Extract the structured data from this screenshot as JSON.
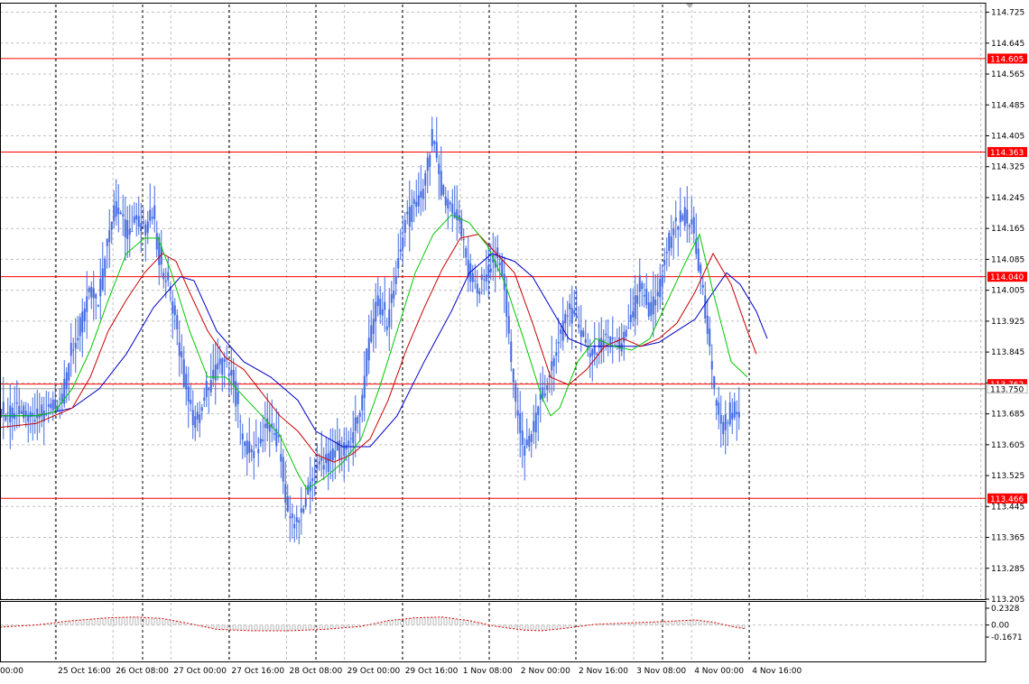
{
  "chart": {
    "price_ticks": [
      "114.725",
      "114.645",
      "114.565",
      "114.485",
      "114.405",
      "114.325",
      "114.245",
      "114.165",
      "114.085",
      "114.005",
      "113.925",
      "113.845",
      "113.765",
      "113.685",
      "113.605",
      "113.525",
      "113.445",
      "113.365",
      "113.285",
      "113.205"
    ],
    "time_labels": [
      "00:00",
      "25 Oct 16:00",
      "26 Oct 08:00",
      "27 Oct 00:00",
      "27 Oct 16:00",
      "28 Oct 08:00",
      "29 Oct 00:00",
      "29 Oct 16:00",
      "1 Nov 08:00",
      "2 Nov 00:00",
      "2 Nov 16:00",
      "3 Nov 08:00",
      "4 Nov 00:00",
      "4 Nov 16:00"
    ],
    "levels": [
      {
        "value": 114.605,
        "label": "114.605"
      },
      {
        "value": 114.363,
        "label": "114.363"
      },
      {
        "value": 114.04,
        "label": "114.040"
      },
      {
        "value": 113.762,
        "label": "113.762"
      },
      {
        "value": 113.466,
        "label": "113.466"
      }
    ],
    "current_price": {
      "value": 113.75,
      "label": "113.750"
    },
    "level_color": "#ff0000",
    "candle_color": "#4169e1",
    "ma_colors": {
      "fast": "#00c800",
      "mid": "#c80000",
      "slow": "#0000c8"
    },
    "osc_ticks": [
      "0.2328",
      "0.00",
      "-0.1671"
    ],
    "osc_range": [
      -0.1671,
      0.2328
    ]
  },
  "chart_data": {
    "type": "line",
    "price_range": [
      113.205,
      114.745
    ],
    "x_range": [
      0,
      1090
    ],
    "close": [
      [
        0,
        113.7
      ],
      [
        10,
        113.68
      ],
      [
        20,
        113.69
      ],
      [
        30,
        113.68
      ],
      [
        40,
        113.69
      ],
      [
        50,
        113.68
      ],
      [
        60,
        113.7
      ],
      [
        70,
        113.73
      ],
      [
        80,
        113.85
      ],
      [
        90,
        113.92
      ],
      [
        100,
        114.02
      ],
      [
        110,
        113.98
      ],
      [
        120,
        114.15
      ],
      [
        130,
        114.22
      ],
      [
        140,
        114.16
      ],
      [
        150,
        114.18
      ],
      [
        160,
        114.17
      ],
      [
        170,
        114.2
      ],
      [
        180,
        114.06
      ],
      [
        190,
        114.0
      ],
      [
        200,
        113.85
      ],
      [
        210,
        113.7
      ],
      [
        220,
        113.66
      ],
      [
        230,
        113.75
      ],
      [
        240,
        113.8
      ],
      [
        250,
        113.82
      ],
      [
        260,
        113.76
      ],
      [
        270,
        113.62
      ],
      [
        280,
        113.58
      ],
      [
        290,
        113.62
      ],
      [
        300,
        113.66
      ],
      [
        310,
        113.6
      ],
      [
        320,
        113.42
      ],
      [
        330,
        113.4
      ],
      [
        340,
        113.47
      ],
      [
        350,
        113.55
      ],
      [
        360,
        113.55
      ],
      [
        370,
        113.58
      ],
      [
        380,
        113.6
      ],
      [
        390,
        113.62
      ],
      [
        400,
        113.7
      ],
      [
        410,
        113.88
      ],
      [
        420,
        113.98
      ],
      [
        430,
        113.92
      ],
      [
        440,
        114.05
      ],
      [
        450,
        114.18
      ],
      [
        460,
        114.22
      ],
      [
        470,
        114.26
      ],
      [
        480,
        114.4
      ],
      [
        490,
        114.26
      ],
      [
        500,
        114.22
      ],
      [
        510,
        114.18
      ],
      [
        520,
        114.06
      ],
      [
        530,
        114.0
      ],
      [
        540,
        114.05
      ],
      [
        550,
        114.1
      ],
      [
        560,
        114.02
      ],
      [
        570,
        113.75
      ],
      [
        580,
        113.6
      ],
      [
        590,
        113.62
      ],
      [
        600,
        113.73
      ],
      [
        610,
        113.78
      ],
      [
        620,
        113.88
      ],
      [
        630,
        113.95
      ],
      [
        640,
        113.92
      ],
      [
        650,
        113.86
      ],
      [
        660,
        113.84
      ],
      [
        670,
        113.88
      ],
      [
        680,
        113.86
      ],
      [
        690,
        113.87
      ],
      [
        700,
        113.92
      ],
      [
        710,
        114.02
      ],
      [
        720,
        113.95
      ],
      [
        730,
        113.98
      ],
      [
        740,
        114.12
      ],
      [
        750,
        114.18
      ],
      [
        760,
        114.2
      ],
      [
        770,
        114.16
      ],
      [
        780,
        114.0
      ],
      [
        790,
        113.78
      ],
      [
        800,
        113.64
      ],
      [
        810,
        113.69
      ],
      [
        820,
        113.7
      ]
    ],
    "ma_fast": [
      [
        0,
        113.68
      ],
      [
        40,
        113.68
      ],
      [
        60,
        113.69
      ],
      [
        80,
        113.75
      ],
      [
        100,
        113.85
      ],
      [
        120,
        113.98
      ],
      [
        140,
        114.1
      ],
      [
        160,
        114.14
      ],
      [
        175,
        114.14
      ],
      [
        190,
        114.05
      ],
      [
        210,
        113.9
      ],
      [
        230,
        113.78
      ],
      [
        250,
        113.78
      ],
      [
        270,
        113.73
      ],
      [
        290,
        113.68
      ],
      [
        310,
        113.63
      ],
      [
        330,
        113.53
      ],
      [
        340,
        113.49
      ],
      [
        360,
        113.52
      ],
      [
        380,
        113.56
      ],
      [
        400,
        113.62
      ],
      [
        420,
        113.75
      ],
      [
        440,
        113.9
      ],
      [
        460,
        114.05
      ],
      [
        480,
        114.15
      ],
      [
        500,
        114.2
      ],
      [
        520,
        114.18
      ],
      [
        540,
        114.12
      ],
      [
        560,
        114.02
      ],
      [
        580,
        113.88
      ],
      [
        600,
        113.73
      ],
      [
        610,
        113.68
      ],
      [
        620,
        113.7
      ],
      [
        640,
        113.82
      ],
      [
        660,
        113.88
      ],
      [
        680,
        113.86
      ],
      [
        700,
        113.85
      ],
      [
        720,
        113.88
      ],
      [
        740,
        113.98
      ],
      [
        760,
        114.08
      ],
      [
        775,
        114.15
      ],
      [
        790,
        114.0
      ],
      [
        810,
        113.82
      ],
      [
        828,
        113.78
      ]
    ],
    "ma_mid": [
      [
        0,
        113.65
      ],
      [
        40,
        113.66
      ],
      [
        80,
        113.7
      ],
      [
        100,
        113.78
      ],
      [
        120,
        113.9
      ],
      [
        140,
        113.98
      ],
      [
        160,
        114.05
      ],
      [
        180,
        114.1
      ],
      [
        195,
        114.08
      ],
      [
        210,
        114.0
      ],
      [
        230,
        113.9
      ],
      [
        250,
        113.83
      ],
      [
        270,
        113.8
      ],
      [
        290,
        113.74
      ],
      [
        310,
        113.68
      ],
      [
        330,
        113.64
      ],
      [
        350,
        113.58
      ],
      [
        370,
        113.56
      ],
      [
        390,
        113.58
      ],
      [
        410,
        113.62
      ],
      [
        430,
        113.72
      ],
      [
        450,
        113.85
      ],
      [
        470,
        113.96
      ],
      [
        490,
        114.06
      ],
      [
        510,
        114.14
      ],
      [
        530,
        114.15
      ],
      [
        550,
        114.1
      ],
      [
        570,
        114.05
      ],
      [
        590,
        113.92
      ],
      [
        610,
        113.78
      ],
      [
        630,
        113.76
      ],
      [
        650,
        113.8
      ],
      [
        670,
        113.86
      ],
      [
        690,
        113.88
      ],
      [
        710,
        113.86
      ],
      [
        730,
        113.88
      ],
      [
        750,
        113.92
      ],
      [
        770,
        114.0
      ],
      [
        790,
        114.1
      ],
      [
        810,
        114.02
      ],
      [
        828,
        113.9
      ],
      [
        838,
        113.84
      ]
    ],
    "ma_slow": [
      [
        0,
        113.68
      ],
      [
        40,
        113.68
      ],
      [
        80,
        113.7
      ],
      [
        110,
        113.75
      ],
      [
        140,
        113.84
      ],
      [
        170,
        113.96
      ],
      [
        200,
        114.04
      ],
      [
        215,
        114.03
      ],
      [
        240,
        113.9
      ],
      [
        270,
        113.82
      ],
      [
        300,
        113.78
      ],
      [
        330,
        113.72
      ],
      [
        350,
        113.64
      ],
      [
        380,
        113.6
      ],
      [
        410,
        113.6
      ],
      [
        440,
        113.68
      ],
      [
        470,
        113.82
      ],
      [
        500,
        113.95
      ],
      [
        520,
        114.05
      ],
      [
        545,
        114.1
      ],
      [
        570,
        114.08
      ],
      [
        590,
        114.04
      ],
      [
        610,
        113.96
      ],
      [
        630,
        113.88
      ],
      [
        650,
        113.86
      ],
      [
        670,
        113.86
      ],
      [
        690,
        113.86
      ],
      [
        710,
        113.86
      ],
      [
        730,
        113.87
      ],
      [
        750,
        113.9
      ],
      [
        770,
        113.93
      ],
      [
        790,
        114.0
      ],
      [
        805,
        114.05
      ],
      [
        820,
        114.02
      ],
      [
        838,
        113.95
      ],
      [
        850,
        113.88
      ]
    ],
    "oscillator": [
      [
        0,
        -0.03
      ],
      [
        40,
        0.0
      ],
      [
        80,
        0.06
      ],
      [
        120,
        0.1
      ],
      [
        150,
        0.11
      ],
      [
        180,
        0.09
      ],
      [
        210,
        0.02
      ],
      [
        240,
        -0.06
      ],
      [
        280,
        -0.08
      ],
      [
        320,
        -0.08
      ],
      [
        360,
        -0.06
      ],
      [
        400,
        -0.02
      ],
      [
        430,
        0.06
      ],
      [
        460,
        0.1
      ],
      [
        490,
        0.11
      ],
      [
        520,
        0.06
      ],
      [
        550,
        -0.02
      ],
      [
        580,
        -0.07
      ],
      [
        600,
        -0.08
      ],
      [
        630,
        -0.04
      ],
      [
        660,
        0.01
      ],
      [
        700,
        0.03
      ],
      [
        740,
        0.05
      ],
      [
        770,
        0.07
      ],
      [
        790,
        0.04
      ],
      [
        810,
        -0.02
      ],
      [
        825,
        -0.05
      ]
    ]
  }
}
